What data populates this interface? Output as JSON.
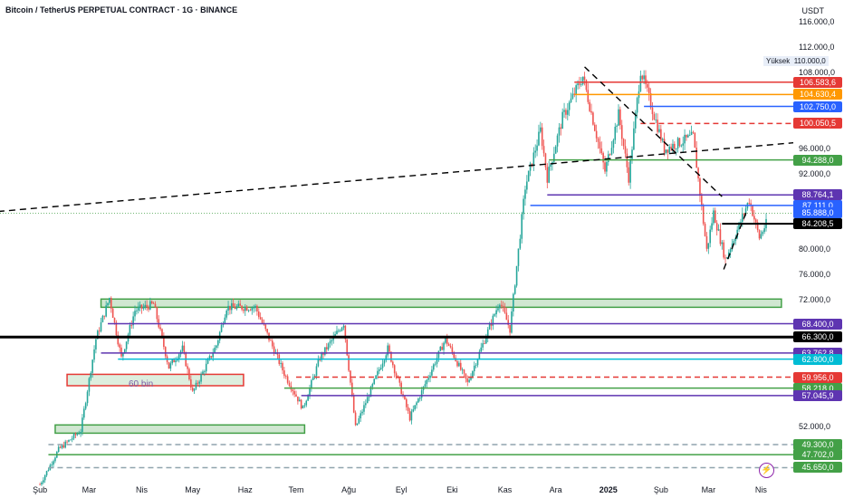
{
  "header": {
    "title": "Bitcoin / TetherUS PERPETUAL CONTRACT · 1G · BINANCE",
    "currency": "USDT"
  },
  "high_marker": {
    "label": "Yüksek",
    "value": "110.000,0"
  },
  "annotation": {
    "text": "60 bin"
  },
  "icons": {
    "alert": "lightning-icon"
  },
  "colors": {
    "up": "#26a69a",
    "down": "#ef5350",
    "red": "#e53935",
    "orange": "#ff9800",
    "blue": "#2962ff",
    "green": "#43a047",
    "purple": "#5e35b1",
    "black": "#000000",
    "cyan": "#00bcd4"
  },
  "chart_data": {
    "type": "candlestick",
    "symbol": "BTCUSDT.P",
    "ylim": [
      44000,
      117000
    ],
    "y_ticks": [
      {
        "value": 116000,
        "label": "116.000,0"
      },
      {
        "value": 112000,
        "label": "112.000,0"
      },
      {
        "value": 108000,
        "label": "108.000,0"
      },
      {
        "value": 96000,
        "label": "96.000,0"
      },
      {
        "value": 92000,
        "label": "92.000,0"
      },
      {
        "value": 80000,
        "label": "80.000,0"
      },
      {
        "value": 76000,
        "label": "76.000,0"
      },
      {
        "value": 72000,
        "label": "72.000,0"
      },
      {
        "value": 52000,
        "label": "52.000,0"
      }
    ],
    "x_ticks": [
      {
        "label": "Şub",
        "date": "2024-02-01"
      },
      {
        "label": "Mar",
        "date": "2024-03-01"
      },
      {
        "label": "Nis",
        "date": "2024-04-01"
      },
      {
        "label": "May",
        "date": "2024-05-01"
      },
      {
        "label": "Haz",
        "date": "2024-06-01"
      },
      {
        "label": "Tem",
        "date": "2024-07-01"
      },
      {
        "label": "Ağu",
        "date": "2024-08-01"
      },
      {
        "label": "Eyl",
        "date": "2024-09-01"
      },
      {
        "label": "Eki",
        "date": "2024-10-01"
      },
      {
        "label": "Kas",
        "date": "2024-11-01"
      },
      {
        "label": "Ara",
        "date": "2024-12-01"
      },
      {
        "label": "2025",
        "date": "2025-01-01",
        "bold": true
      },
      {
        "label": "Şub",
        "date": "2025-02-01"
      },
      {
        "label": "Mar",
        "date": "2025-03-01"
      },
      {
        "label": "Nis",
        "date": "2025-04-01"
      }
    ],
    "price_path": [
      {
        "date": "2024-02-01",
        "price": 43000
      },
      {
        "date": "2024-02-12",
        "price": 48500
      },
      {
        "date": "2024-02-25",
        "price": 51500
      },
      {
        "date": "2024-03-05",
        "price": 66000
      },
      {
        "date": "2024-03-13",
        "price": 72500
      },
      {
        "date": "2024-03-20",
        "price": 63000
      },
      {
        "date": "2024-03-28",
        "price": 70500
      },
      {
        "date": "2024-04-08",
        "price": 71500
      },
      {
        "date": "2024-04-17",
        "price": 61500
      },
      {
        "date": "2024-04-25",
        "price": 64500
      },
      {
        "date": "2024-05-01",
        "price": 57500
      },
      {
        "date": "2024-05-15",
        "price": 65000
      },
      {
        "date": "2024-05-21",
        "price": 71000
      },
      {
        "date": "2024-06-07",
        "price": 71000
      },
      {
        "date": "2024-06-24",
        "price": 60500
      },
      {
        "date": "2024-07-05",
        "price": 55000
      },
      {
        "date": "2024-07-15",
        "price": 63000
      },
      {
        "date": "2024-07-29",
        "price": 68500
      },
      {
        "date": "2024-08-05",
        "price": 52000
      },
      {
        "date": "2024-08-24",
        "price": 64500
      },
      {
        "date": "2024-09-06",
        "price": 53500
      },
      {
        "date": "2024-09-27",
        "price": 66000
      },
      {
        "date": "2024-10-10",
        "price": 59000
      },
      {
        "date": "2024-10-29",
        "price": 72000
      },
      {
        "date": "2024-11-04",
        "price": 67500
      },
      {
        "date": "2024-11-13",
        "price": 90000
      },
      {
        "date": "2024-11-22",
        "price": 99000
      },
      {
        "date": "2024-11-26",
        "price": 91500
      },
      {
        "date": "2024-12-05",
        "price": 101000
      },
      {
        "date": "2024-12-17",
        "price": 107500
      },
      {
        "date": "2024-12-30",
        "price": 92500
      },
      {
        "date": "2025-01-07",
        "price": 101500
      },
      {
        "date": "2025-01-13",
        "price": 91500
      },
      {
        "date": "2025-01-20",
        "price": 108500
      },
      {
        "date": "2025-02-03",
        "price": 96000
      },
      {
        "date": "2025-02-20",
        "price": 98000
      },
      {
        "date": "2025-02-28",
        "price": 80000
      },
      {
        "date": "2025-03-04",
        "price": 86000
      },
      {
        "date": "2025-03-11",
        "price": 78500
      },
      {
        "date": "2025-03-25",
        "price": 88000
      },
      {
        "date": "2025-03-31",
        "price": 82000
      },
      {
        "date": "2025-04-04",
        "price": 84200
      }
    ],
    "horizontal_levels": [
      {
        "value": 106583.6,
        "label": "106.583,6",
        "color": "#e53935",
        "style": "solid",
        "from": "2024-12-12"
      },
      {
        "value": 104630.4,
        "label": "104.630,4",
        "color": "#ff9800",
        "style": "solid",
        "from": "2024-12-12"
      },
      {
        "value": 102750.0,
        "label": "102.750,0",
        "color": "#2962ff",
        "style": "solid",
        "from": "2025-01-22"
      },
      {
        "value": 100050.5,
        "label": "100.050,5",
        "color": "#e53935",
        "style": "dashed",
        "from": "2025-01-20"
      },
      {
        "value": 94288.0,
        "label": "94.288,0",
        "color": "#43a047",
        "style": "solid",
        "from": "2024-11-27"
      },
      {
        "value": 88764.1,
        "label": "88.764,1",
        "color": "#5e35b1",
        "style": "solid",
        "from": "2024-11-26"
      },
      {
        "value": 87111.0,
        "label": "87.111,0",
        "color": "#2962ff",
        "style": "solid",
        "from": "2024-11-16"
      },
      {
        "value": 85888.0,
        "label": "85.888,0",
        "color": "#43a047",
        "style": "dotted",
        "from": "2024-01-01"
      },
      {
        "value": 84208.5,
        "label": "84.208,5",
        "color": "#000000",
        "style": "solid",
        "from": "2025-03-09",
        "current": true
      },
      {
        "value": 68400.0,
        "label": "68.400,0",
        "color": "#5e35b1",
        "style": "solid",
        "from": "2024-03-12"
      },
      {
        "value": 66300.0,
        "label": "66.300,0",
        "color": "#000000",
        "style": "solid",
        "from": "2024-01-01"
      },
      {
        "value": 63762.8,
        "label": "63.762,8",
        "color": "#5e35b1",
        "style": "solid",
        "from": "2024-03-08"
      },
      {
        "value": 62800.0,
        "label": "62.800,0",
        "color": "#00bcd4",
        "style": "solid",
        "from": "2024-03-18"
      },
      {
        "value": 59956.0,
        "label": "59.956,0",
        "color": "#e53935",
        "style": "dashed",
        "from": "2024-07-01"
      },
      {
        "value": 58218.0,
        "label": "58.218,0",
        "color": "#43a047",
        "style": "solid",
        "from": "2024-06-24"
      },
      {
        "value": 57045.9,
        "label": "57.045,9",
        "color": "#5e35b1",
        "style": "solid",
        "from": "2024-07-04"
      },
      {
        "value": 49300.0,
        "label": "49.300,0",
        "color": "#90a4ae",
        "style": "dashed",
        "from": "2024-02-06"
      },
      {
        "value": 47702.0,
        "label": "47.702,0",
        "color": "#43a047",
        "style": "solid",
        "from": "2024-02-06"
      },
      {
        "value": 45650.0,
        "label": "45.650,0",
        "color": "#90a4ae",
        "style": "dashed",
        "from": "2024-02-06"
      }
    ],
    "zones": [
      {
        "from": "2024-03-08",
        "to": "2025-04-13",
        "top": 72300,
        "bottom": 71000,
        "color": "#43a047"
      },
      {
        "from": "2024-02-10",
        "to": "2024-07-06",
        "top": 52400,
        "bottom": 51100,
        "color": "#43a047"
      },
      {
        "from": "2024-02-17",
        "to": "2024-05-31",
        "top": 60400,
        "bottom": 58600,
        "color": "#e53935",
        "label": "60 bin"
      }
    ],
    "trend_lines": [
      {
        "from": {
          "date": "2024-01-01",
          "price": 86000
        },
        "to": {
          "date": "2025-04-20",
          "price": 97000
        },
        "style": "dashed"
      },
      {
        "from": {
          "date": "2024-12-18",
          "price": 109000
        },
        "to": {
          "date": "2025-03-09",
          "price": 88500
        },
        "style": "dashed"
      },
      {
        "from": {
          "date": "2025-03-10",
          "price": 77000
        },
        "to": {
          "date": "2025-03-24",
          "price": 86500
        },
        "style": "dashed"
      }
    ]
  }
}
